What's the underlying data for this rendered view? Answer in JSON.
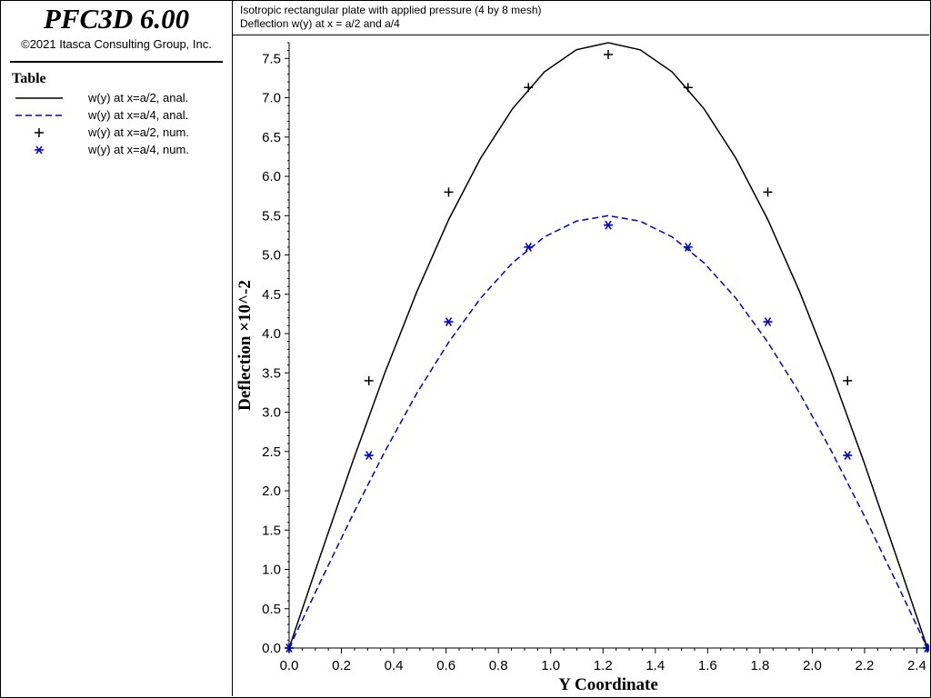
{
  "app": {
    "title": "PFC3D 6.00",
    "copyright": "©2021 Itasca Consulting Group, Inc."
  },
  "legend": {
    "heading": "Table",
    "entries": [
      {
        "label": "w(y) at x=a/2, anal.",
        "style": "solid-line",
        "color": "#000000"
      },
      {
        "label": "w(y) at x=a/4, anal.",
        "style": "dashed-line",
        "color": "#0000cc"
      },
      {
        "label": "w(y) at x=a/2, num.",
        "style": "plus-marker",
        "color": "#000000"
      },
      {
        "label": "w(y) at x=a/4, num.",
        "style": "asterisk-marker",
        "color": "#0000cc"
      }
    ]
  },
  "header": {
    "title": "Isotropic rectangular plate with applied pressure (4 by 8 mesh)",
    "subtitle": "Deflection w(y) at x = a/2 and a/4"
  },
  "chart_data": {
    "type": "line",
    "xlabel": "Y Coordinate",
    "ylabel": "Deflection ×10^-2",
    "xlim": [
      0,
      2.44
    ],
    "ylim": [
      0,
      7.7
    ],
    "x_ticks": [
      "0.0",
      "0.2",
      "0.4",
      "0.6",
      "0.8",
      "1.0",
      "1.2",
      "1.4",
      "1.6",
      "1.8",
      "2.0",
      "2.2",
      "2.4"
    ],
    "y_ticks": [
      "0.0",
      "0.5",
      "1.0",
      "1.5",
      "2.0",
      "2.5",
      "3.0",
      "3.5",
      "4.0",
      "4.5",
      "5.0",
      "5.5",
      "6.0",
      "6.5",
      "7.0",
      "7.5"
    ],
    "grid": false,
    "legend_position": "left-panel",
    "series": [
      {
        "name": "w(y) at x=a/2, anal.",
        "kind": "curve",
        "color": "#000000",
        "x": [
          0,
          0.122,
          0.244,
          0.366,
          0.488,
          0.61,
          0.732,
          0.854,
          0.976,
          1.098,
          1.22,
          1.342,
          1.464,
          1.586,
          1.708,
          1.83,
          1.952,
          2.074,
          2.196,
          2.318,
          2.44
        ],
        "y": [
          0,
          1.2,
          2.38,
          3.5,
          4.53,
          5.45,
          6.23,
          6.86,
          7.33,
          7.61,
          7.7,
          7.61,
          7.33,
          6.86,
          6.23,
          5.45,
          4.53,
          3.5,
          2.38,
          1.2,
          0
        ]
      },
      {
        "name": "w(y) at x=a/4, anal.",
        "kind": "curve",
        "color": "#0000cc",
        "x": [
          0,
          0.122,
          0.244,
          0.366,
          0.488,
          0.61,
          0.732,
          0.854,
          0.976,
          1.098,
          1.22,
          1.342,
          1.464,
          1.586,
          1.708,
          1.83,
          1.952,
          2.074,
          2.196,
          2.318,
          2.44
        ],
        "y": [
          0,
          0.86,
          1.7,
          2.5,
          3.24,
          3.89,
          4.45,
          4.9,
          5.23,
          5.43,
          5.5,
          5.43,
          5.23,
          4.9,
          4.45,
          3.89,
          3.24,
          2.5,
          1.7,
          0.86,
          0
        ]
      },
      {
        "name": "w(y) at x=a/2, num.",
        "kind": "plus",
        "color": "#000000",
        "x": [
          0,
          0.305,
          0.61,
          0.915,
          1.22,
          1.525,
          1.83,
          2.135,
          2.44
        ],
        "y": [
          0,
          3.4,
          5.8,
          7.13,
          7.55,
          7.13,
          5.8,
          3.4,
          0
        ]
      },
      {
        "name": "w(y) at x=a/4, num.",
        "kind": "asterisk",
        "color": "#0000cc",
        "x": [
          0,
          0.305,
          0.61,
          0.915,
          1.22,
          1.525,
          1.83,
          2.135,
          2.44
        ],
        "y": [
          0,
          2.45,
          4.15,
          5.1,
          5.38,
          5.1,
          4.15,
          2.45,
          0
        ]
      }
    ]
  }
}
